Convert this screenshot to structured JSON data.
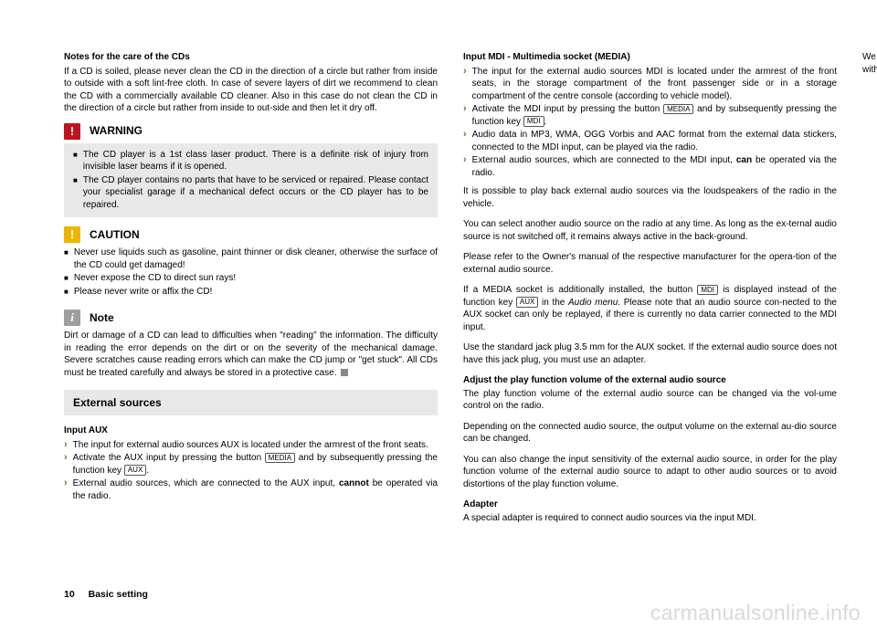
{
  "left": {
    "cd_notes_heading": "Notes for the care of the CDs",
    "cd_notes_body": "If a CD is soiled, please never clean the CD in the direction of a circle but rather from inside to outside with a soft lint-free cloth. In case of severe layers of dirt we recommend to clean the CD with a commercially available CD cleaner. Also in this case do not clean the CD in the direction of a circle but rather from inside to out-side and then let it dry off.",
    "warning_label": "WARNING",
    "warning_items": [
      "The CD player is a 1st class laser product. There is a definite risk of injury from invisible laser beams if it is opened.",
      "The CD player contains no parts that have to be serviced or repaired. Please contact your specialist garage if a mechanical defect occurs or the CD player has to be repaired."
    ],
    "caution_label": "CAUTION",
    "caution_items": [
      "Never use liquids such as gasoline, paint thinner or disk cleaner, otherwise the surface of the CD could get damaged!",
      "Never expose the CD to direct sun rays!",
      "Please never write or affix the CD!"
    ],
    "note_label": "Note",
    "note_body": "Dirt or damage of a CD can lead to difficulties when \"reading\" the information. The difficulty in reading the error depends on the dirt or on the severity of the mechanical damage. Severe scratches cause reading errors which can make the CD jump or \"get stuck\". All CDs must be treated carefully and always be stored in a protective case.",
    "external_sources_title": "External sources",
    "input_aux_heading": "Input AUX",
    "aux_item1": "The input for external audio sources AUX is located under the armrest of the front seats.",
    "aux_item2_a": "Activate the AUX input by pressing the button ",
    "aux_item2_b": " and by subsequently pressing the function key ",
    "aux_item3_a": "External audio sources, which are connected to the AUX input, ",
    "aux_item3_bold": "cannot",
    "aux_item3_b": " be operated via the radio.",
    "key_media": "MEDIA",
    "key_aux": "AUX"
  },
  "right": {
    "mdi_heading": "Input MDI - Multimedia socket (MEDIA)",
    "mdi_item1": "The input for the external audio sources MDI is located under the armrest of the front seats, in the storage compartment of the front passenger side or in a storage compartment of the centre console (according to vehicle model).",
    "mdi_item2_a": "Activate the MDI input by pressing the button ",
    "mdi_item2_b": " and by subsequently pressing the function key ",
    "mdi_item3": "Audio data in MP3, WMA, OGG Vorbis and AAC format from the external data stickers, connected to the MDI input, can be played via the radio.",
    "mdi_item4_a": "External audio sources, which are connected to the MDI input, ",
    "mdi_item4_bold": "can",
    "mdi_item4_b": " be operated via the radio.",
    "key_media": "MEDIA",
    "key_mdi": "MDI",
    "key_aux": "AUX",
    "p1": "It is possible to play back external audio sources via the loudspeakers of the radio in the vehicle.",
    "p2": "You can select another audio source on the radio at any time. As long as the ex-ternal audio source is not switched off, it remains always active in the back-ground.",
    "p3": "Please refer to the Owner's manual of the respective manufacturer for the opera-tion of the external audio source.",
    "p4_a": "If a MEDIA  socket is additionally installed, the button ",
    "p4_b": " is displayed instead of the function key ",
    "p4_c": " in the ",
    "p4_it": "Audio menu",
    "p4_d": ". Please note that an audio source con-nected to the AUX socket can only be replayed, if there is currently no data carrier connected to the MDI input.",
    "p5": "Use the standard jack plug 3.5 mm for the AUX socket. If the external audio source does not have this jack plug, you must use an adapter.",
    "adj_heading": "Adjust the play function volume of the external audio source",
    "adj_p1": "The play function volume of the external audio source can be changed via the vol-ume control on the radio.",
    "adj_p2": "Depending on the connected audio source, the output volume on the external au-dio source can be changed.",
    "adj_p3": "You can also change the input sensitivity of the external audio source, in order for the play function volume of the external audio source to adapt to other audio sources or to avoid distortions of the play function volume.",
    "adapter_heading": "Adapter",
    "adapter_p1": "A special adapter is required to connect audio sources via the input MDI.",
    "adapter_p2": "We recommend that you purchase an adapter for connecting the USB devices, the devices with Mini USB output or an iPod, at an authorised ŠKODA Service Partner."
  },
  "footer": {
    "page_number": "10",
    "section": "Basic setting"
  },
  "watermark": "carmanualsonline.info"
}
